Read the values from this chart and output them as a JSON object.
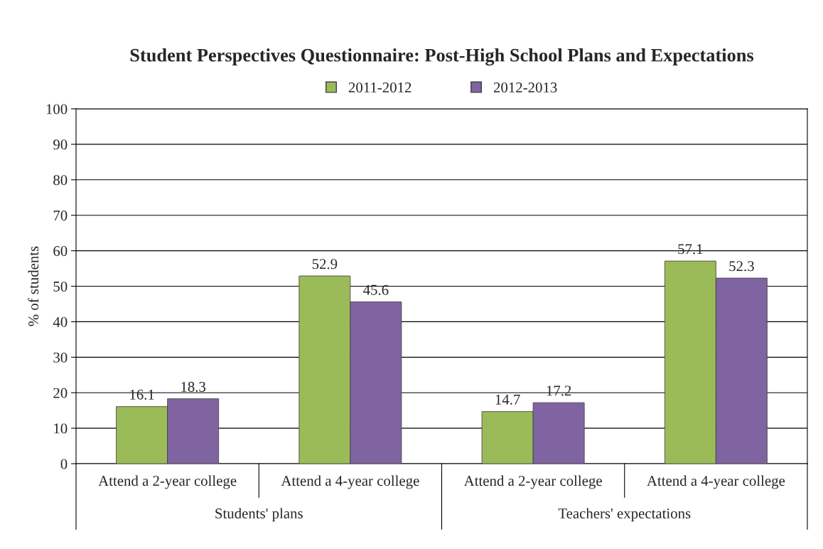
{
  "chart_data": {
    "type": "bar",
    "title": "Student Perspectives Questionnaire: Post-High School Plans and Expectations",
    "categories": [
      "Attend a 2-year college",
      "Attend a 4-year college",
      "Attend a 2-year college",
      "Attend a 4-year college"
    ],
    "series": [
      {
        "name": "2011-2012",
        "color": "#9bbb59",
        "values": [
          16.1,
          52.9,
          14.7,
          57.1
        ]
      },
      {
        "name": "2012-2013",
        "color": "#8064a2",
        "values": [
          18.3,
          45.6,
          17.2,
          52.3
        ]
      }
    ],
    "ylabel": "% of students",
    "ylim": [
      0,
      100
    ],
    "yticks": [
      0,
      10,
      20,
      30,
      40,
      50,
      60,
      70,
      80,
      90,
      100
    ],
    "grid": "y",
    "legend": "top",
    "data_labels": true,
    "annotations": [
      "Students' plans",
      "Teachers' expectations"
    ]
  }
}
